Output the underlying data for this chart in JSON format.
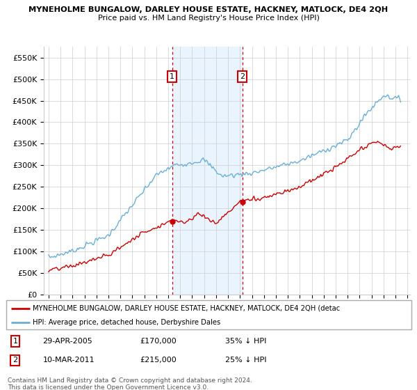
{
  "title1": "MYNEHOLME BUNGALOW, DARLEY HOUSE ESTATE, HACKNEY, MATLOCK, DE4 2QH",
  "title2": "Price paid vs. HM Land Registry's House Price Index (HPI)",
  "background_color": "#ffffff",
  "grid_color": "#cccccc",
  "hpi_color": "#6baed6",
  "price_color": "#cc0000",
  "shade_color": "#ddeeff",
  "ylim": [
    0,
    575000
  ],
  "yticks": [
    0,
    50000,
    100000,
    150000,
    200000,
    250000,
    300000,
    350000,
    400000,
    450000,
    500000,
    550000
  ],
  "ytick_labels": [
    "£0",
    "£50K",
    "£100K",
    "£150K",
    "£200K",
    "£250K",
    "£300K",
    "£350K",
    "£400K",
    "£450K",
    "£500K",
    "£550K"
  ],
  "xticks": [
    1995,
    1996,
    1997,
    1998,
    1999,
    2000,
    2001,
    2002,
    2003,
    2004,
    2005,
    2006,
    2007,
    2008,
    2009,
    2010,
    2011,
    2012,
    2013,
    2014,
    2015,
    2016,
    2017,
    2018,
    2019,
    2020,
    2021,
    2022,
    2023,
    2024,
    2025
  ],
  "sale1_x": 2005.33,
  "sale1_y": 170000,
  "sale1_label": "1",
  "sale2_x": 2011.19,
  "sale2_y": 215000,
  "sale2_label": "2",
  "shade_x1": 2005.33,
  "shade_x2": 2011.19,
  "legend_entries": [
    "MYNEHOLME BUNGALOW, DARLEY HOUSE ESTATE, HACKNEY, MATLOCK, DE4 2QH (detac",
    "HPI: Average price, detached house, Derbyshire Dales"
  ],
  "table_entries": [
    {
      "label": "1",
      "date": "29-APR-2005",
      "price": "£170,000",
      "hpi": "35% ↓ HPI"
    },
    {
      "label": "2",
      "date": "10-MAR-2011",
      "price": "£215,000",
      "hpi": "25% ↓ HPI"
    }
  ],
  "footer": "Contains HM Land Registry data © Crown copyright and database right 2024.\nThis data is licensed under the Open Government Licence v3.0."
}
